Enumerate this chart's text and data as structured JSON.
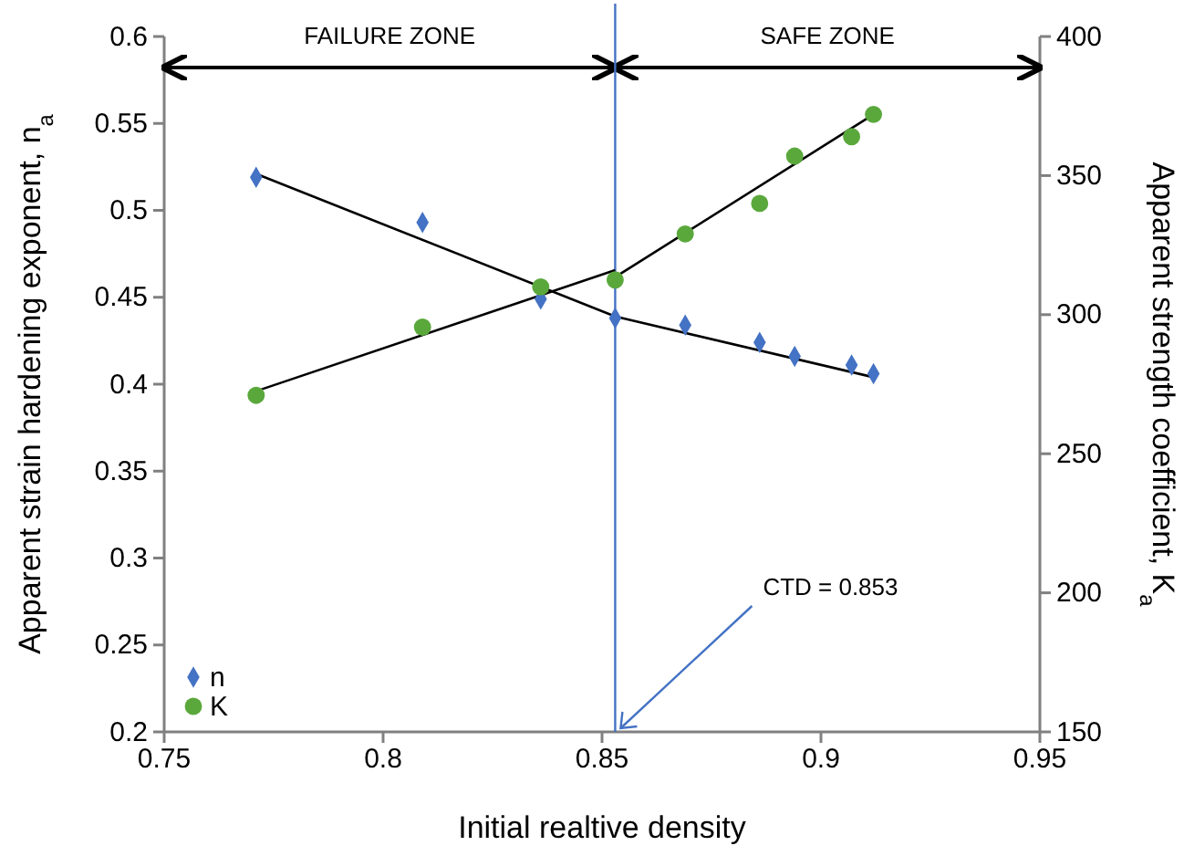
{
  "chart_data": {
    "type": "scatter",
    "xlabel": "Initial realtive density",
    "ylabel": "Apparent strain hardening exponent, n$_{a}$",
    "y2label": "Apparent strength coefficient, K$_{a}$",
    "xlim": [
      0.75,
      0.95
    ],
    "xticks": [
      0.75,
      0.8,
      0.85,
      0.9,
      0.95
    ],
    "ylim": [
      0.2,
      0.6
    ],
    "yticks": [
      0.2,
      0.25,
      0.3,
      0.35,
      0.4,
      0.45,
      0.5,
      0.55,
      0.6
    ],
    "y2lim": [
      150,
      400
    ],
    "y2ticks": [
      150,
      200,
      250,
      300,
      350,
      400
    ],
    "grid": false,
    "legend": "bottom left",
    "series": [
      {
        "name": "n",
        "marker": "diamond",
        "color": "#4472c4",
        "x": [
          0.771,
          0.809,
          0.836,
          0.853,
          0.869,
          0.886,
          0.894,
          0.907,
          0.912
        ],
        "values": [
          0.519,
          0.493,
          0.449,
          0.438,
          0.434,
          0.424,
          0.416,
          0.411,
          0.406
        ]
      },
      {
        "name": "K",
        "marker": "circle",
        "axis": "y2",
        "color": "#5aa83c",
        "x": [
          0.771,
          0.809,
          0.836,
          0.853,
          0.869,
          0.886,
          0.894,
          0.907,
          0.912
        ],
        "values": [
          271,
          295.5,
          310,
          312.5,
          329,
          340,
          357,
          364,
          372
        ]
      },
      {
        "type": "line",
        "marker": "none",
        "color": "#000000",
        "x": [
          0.771,
          0.853
        ],
        "values": [
          0.521,
          0.439
        ]
      },
      {
        "type": "line",
        "marker": "none",
        "color": "#000000",
        "x": [
          0.853,
          0.912
        ],
        "values": [
          0.439,
          0.404
        ]
      },
      {
        "type": "line",
        "marker": "none",
        "axis": "y2",
        "color": "#000000",
        "x": [
          0.771,
          0.853
        ],
        "values": [
          272.5,
          316
        ]
      },
      {
        "type": "line",
        "marker": "none",
        "axis": "y2",
        "color": "#000000",
        "x": [
          0.853,
          0.912
        ],
        "values": [
          313.5,
          372
        ]
      }
    ],
    "ref_lines": [
      {
        "axis": "x",
        "value": 0.853,
        "color": "#4472c4"
      }
    ],
    "annotations": [
      "FAILURE ZONE",
      "SAFE ZONE",
      {
        "text": "CTD = 0.853",
        "x": 0.853,
        "y": 0.2
      }
    ]
  }
}
